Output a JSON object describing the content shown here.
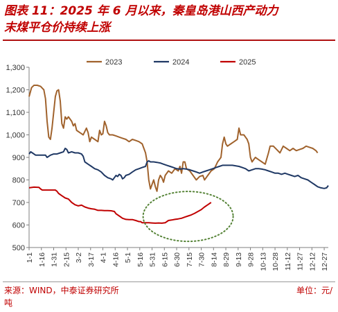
{
  "header": {
    "title_line1": "图表 11：2025 年 6 月以来，秦皇岛港山西产动力",
    "title_line2": "末煤平仓价持续上涨"
  },
  "footer": {
    "source": "来源：WIND，中泰证券研究所",
    "unit_part1": "单位：元/",
    "unit_part2": "吨"
  },
  "chart_data": {
    "type": "line",
    "title": "",
    "xlabel": "",
    "ylabel": "",
    "ylim": [
      500,
      1300
    ],
    "yticks": [
      500,
      600,
      700,
      800,
      900,
      1000,
      1100,
      1200,
      1300
    ],
    "ytick_labels": [
      "500",
      "600",
      "700",
      "800",
      "900",
      "1,000",
      "1,100",
      "1,200",
      "1,300"
    ],
    "xtick_labels": [
      "1-1",
      "1-16",
      "1-31",
      "2-15",
      "3-2",
      "3-17",
      "4-1",
      "4-16",
      "5-1",
      "5-16",
      "5-31",
      "6-15",
      "6-30",
      "7-15",
      "7-30",
      "8-14",
      "8-29",
      "9-13",
      "9-28",
      "10-13",
      "10-28",
      "11-12",
      "11-27",
      "12-12",
      "12-27"
    ],
    "x_domain_days": [
      0,
      365
    ],
    "grid": false,
    "legend": "top",
    "series": [
      {
        "name": "2023",
        "color": "#a0622c",
        "points": [
          [
            0,
            1170
          ],
          [
            3,
            1210
          ],
          [
            6,
            1220
          ],
          [
            10,
            1220
          ],
          [
            14,
            1215
          ],
          [
            18,
            1200
          ],
          [
            20,
            1160
          ],
          [
            22,
            1060
          ],
          [
            24,
            990
          ],
          [
            26,
            980
          ],
          [
            28,
            1030
          ],
          [
            30,
            1100
          ],
          [
            32,
            1170
          ],
          [
            34,
            1195
          ],
          [
            36,
            1200
          ],
          [
            38,
            1150
          ],
          [
            40,
            1050
          ],
          [
            42,
            1030
          ],
          [
            44,
            1080
          ],
          [
            46,
            1070
          ],
          [
            48,
            1080
          ],
          [
            52,
            1060
          ],
          [
            54,
            1040
          ],
          [
            56,
            1050
          ],
          [
            58,
            1020
          ],
          [
            62,
            1010
          ],
          [
            66,
            1000
          ],
          [
            70,
            1030
          ],
          [
            72,
            1010
          ],
          [
            74,
            970
          ],
          [
            76,
            990
          ],
          [
            80,
            980
          ],
          [
            84,
            970
          ],
          [
            86,
            1020
          ],
          [
            88,
            1000
          ],
          [
            90,
            1005
          ],
          [
            92,
            1060
          ],
          [
            94,
            1040
          ],
          [
            96,
            1010
          ],
          [
            98,
            1000
          ],
          [
            102,
            1000
          ],
          [
            106,
            995
          ],
          [
            110,
            990
          ],
          [
            114,
            985
          ],
          [
            118,
            980
          ],
          [
            122,
            970
          ],
          [
            126,
            980
          ],
          [
            130,
            975
          ],
          [
            134,
            970
          ],
          [
            138,
            960
          ],
          [
            140,
            940
          ],
          [
            142,
            920
          ],
          [
            144,
            880
          ],
          [
            146,
            800
          ],
          [
            148,
            760
          ],
          [
            150,
            780
          ],
          [
            152,
            800
          ],
          [
            154,
            770
          ],
          [
            156,
            750
          ],
          [
            158,
            800
          ],
          [
            160,
            820
          ],
          [
            162,
            810
          ],
          [
            164,
            790
          ],
          [
            166,
            820
          ],
          [
            170,
            840
          ],
          [
            174,
            830
          ],
          [
            178,
            850
          ],
          [
            182,
            840
          ],
          [
            184,
            860
          ],
          [
            186,
            830
          ],
          [
            188,
            880
          ],
          [
            190,
            880
          ],
          [
            192,
            850
          ],
          [
            196,
            840
          ],
          [
            200,
            820
          ],
          [
            204,
            800
          ],
          [
            208,
            815
          ],
          [
            212,
            820
          ],
          [
            214,
            800
          ],
          [
            218,
            820
          ],
          [
            222,
            840
          ],
          [
            226,
            850
          ],
          [
            230,
            880
          ],
          [
            234,
            900
          ],
          [
            236,
            960
          ],
          [
            238,
            990
          ],
          [
            240,
            960
          ],
          [
            242,
            950
          ],
          [
            246,
            960
          ],
          [
            250,
            970
          ],
          [
            254,
            980
          ],
          [
            256,
            1030
          ],
          [
            258,
            1000
          ],
          [
            262,
            1000
          ],
          [
            264,
            990
          ],
          [
            266,
            980
          ],
          [
            268,
            960
          ],
          [
            270,
            900
          ],
          [
            272,
            880
          ],
          [
            276,
            900
          ],
          [
            280,
            890
          ],
          [
            284,
            880
          ],
          [
            288,
            870
          ],
          [
            292,
            920
          ],
          [
            294,
            950
          ],
          [
            298,
            950
          ],
          [
            302,
            935
          ],
          [
            306,
            920
          ],
          [
            310,
            950
          ],
          [
            314,
            940
          ],
          [
            318,
            930
          ],
          [
            322,
            940
          ],
          [
            326,
            930
          ],
          [
            330,
            935
          ],
          [
            334,
            940
          ],
          [
            338,
            950
          ],
          [
            342,
            945
          ],
          [
            346,
            940
          ],
          [
            350,
            930
          ],
          [
            352,
            920
          ]
        ]
      },
      {
        "name": "2024",
        "color": "#1f3864",
        "points": [
          [
            0,
            915
          ],
          [
            2,
            925
          ],
          [
            4,
            920
          ],
          [
            8,
            910
          ],
          [
            12,
            910
          ],
          [
            16,
            910
          ],
          [
            20,
            910
          ],
          [
            22,
            900
          ],
          [
            26,
            910
          ],
          [
            30,
            915
          ],
          [
            34,
            915
          ],
          [
            38,
            920
          ],
          [
            42,
            925
          ],
          [
            44,
            940
          ],
          [
            46,
            935
          ],
          [
            48,
            920
          ],
          [
            52,
            925
          ],
          [
            56,
            920
          ],
          [
            60,
            920
          ],
          [
            64,
            915
          ],
          [
            66,
            905
          ],
          [
            68,
            880
          ],
          [
            72,
            870
          ],
          [
            76,
            860
          ],
          [
            80,
            850
          ],
          [
            84,
            845
          ],
          [
            88,
            835
          ],
          [
            92,
            820
          ],
          [
            96,
            810
          ],
          [
            100,
            805
          ],
          [
            102,
            800
          ],
          [
            104,
            810
          ],
          [
            106,
            820
          ],
          [
            108,
            815
          ],
          [
            110,
            825
          ],
          [
            112,
            820
          ],
          [
            114,
            805
          ],
          [
            116,
            810
          ],
          [
            118,
            820
          ],
          [
            122,
            825
          ],
          [
            126,
            835
          ],
          [
            130,
            845
          ],
          [
            134,
            850
          ],
          [
            138,
            855
          ],
          [
            142,
            860
          ],
          [
            144,
            880
          ],
          [
            146,
            885
          ],
          [
            148,
            880
          ],
          [
            152,
            880
          ],
          [
            156,
            878
          ],
          [
            160,
            875
          ],
          [
            164,
            870
          ],
          [
            168,
            865
          ],
          [
            172,
            860
          ],
          [
            176,
            855
          ],
          [
            180,
            850
          ],
          [
            184,
            848
          ],
          [
            188,
            850
          ],
          [
            192,
            848
          ],
          [
            196,
            845
          ],
          [
            200,
            840
          ],
          [
            204,
            835
          ],
          [
            208,
            830
          ],
          [
            212,
            835
          ],
          [
            216,
            840
          ],
          [
            220,
            845
          ],
          [
            224,
            850
          ],
          [
            228,
            855
          ],
          [
            232,
            860
          ],
          [
            236,
            865
          ],
          [
            240,
            865
          ],
          [
            248,
            865
          ],
          [
            256,
            860
          ],
          [
            260,
            855
          ],
          [
            264,
            850
          ],
          [
            268,
            840
          ],
          [
            272,
            845
          ],
          [
            276,
            850
          ],
          [
            280,
            850
          ],
          [
            284,
            848
          ],
          [
            288,
            845
          ],
          [
            292,
            840
          ],
          [
            296,
            835
          ],
          [
            300,
            830
          ],
          [
            304,
            830
          ],
          [
            308,
            825
          ],
          [
            312,
            830
          ],
          [
            316,
            825
          ],
          [
            320,
            820
          ],
          [
            324,
            815
          ],
          [
            328,
            820
          ],
          [
            332,
            810
          ],
          [
            336,
            805
          ],
          [
            340,
            800
          ],
          [
            344,
            790
          ],
          [
            348,
            780
          ],
          [
            352,
            770
          ],
          [
            356,
            765
          ],
          [
            360,
            762
          ],
          [
            363,
            765
          ],
          [
            365,
            775
          ]
        ]
      },
      {
        "name": "2025",
        "color": "#c00000",
        "points": [
          [
            0,
            765
          ],
          [
            6,
            768
          ],
          [
            12,
            767
          ],
          [
            14,
            760
          ],
          [
            16,
            755
          ],
          [
            20,
            755
          ],
          [
            24,
            755
          ],
          [
            28,
            755
          ],
          [
            32,
            755
          ],
          [
            34,
            750
          ],
          [
            36,
            740
          ],
          [
            40,
            730
          ],
          [
            44,
            720
          ],
          [
            48,
            715
          ],
          [
            52,
            700
          ],
          [
            56,
            690
          ],
          [
            60,
            685
          ],
          [
            64,
            688
          ],
          [
            68,
            680
          ],
          [
            72,
            675
          ],
          [
            76,
            672
          ],
          [
            80,
            670
          ],
          [
            84,
            665
          ],
          [
            88,
            665
          ],
          [
            92,
            664
          ],
          [
            96,
            664
          ],
          [
            100,
            663
          ],
          [
            104,
            660
          ],
          [
            106,
            650
          ],
          [
            110,
            640
          ],
          [
            114,
            630
          ],
          [
            118,
            625
          ],
          [
            122,
            624
          ],
          [
            126,
            624
          ],
          [
            130,
            620
          ],
          [
            134,
            615
          ],
          [
            136,
            615
          ],
          [
            138,
            610
          ],
          [
            142,
            610
          ],
          [
            146,
            610
          ],
          [
            150,
            609
          ],
          [
            154,
            608
          ],
          [
            158,
            609
          ],
          [
            162,
            608
          ],
          [
            166,
            610
          ],
          [
            170,
            620
          ],
          [
            174,
            622
          ],
          [
            178,
            625
          ],
          [
            182,
            627
          ],
          [
            186,
            630
          ],
          [
            190,
            635
          ],
          [
            194,
            640
          ],
          [
            198,
            645
          ],
          [
            202,
            652
          ],
          [
            206,
            660
          ],
          [
            210,
            668
          ],
          [
            214,
            680
          ],
          [
            218,
            690
          ],
          [
            222,
            700
          ]
        ]
      }
    ],
    "annotation": {
      "type": "dotted-ellipse",
      "color": "#548235"
    }
  }
}
